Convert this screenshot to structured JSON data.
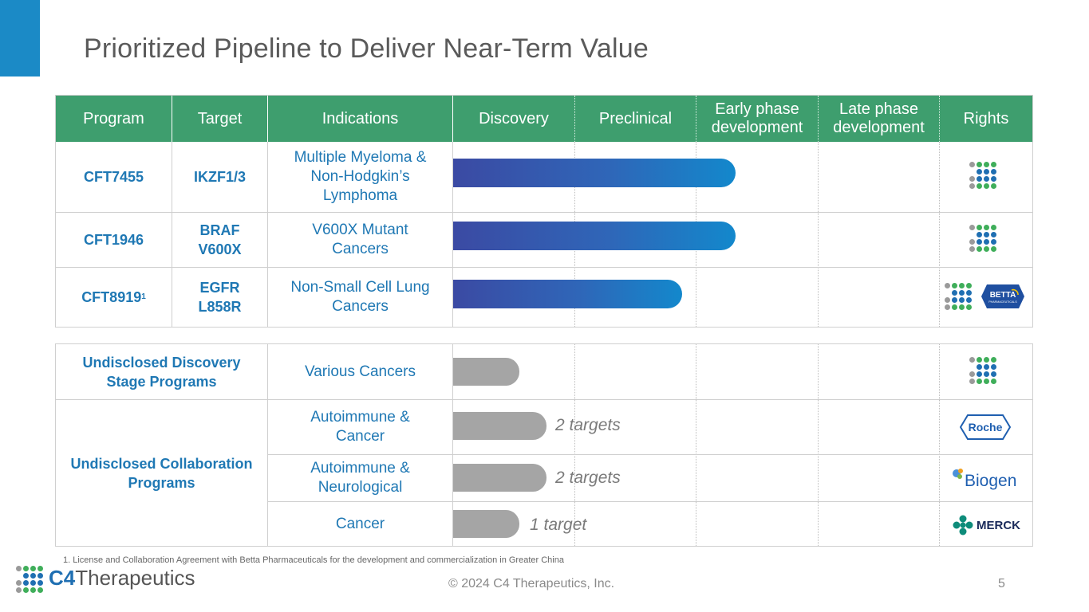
{
  "title": "Prioritized Pipeline to Deliver Near-Term Value",
  "headers": {
    "program": "Program",
    "target": "Target",
    "indications": "Indications",
    "discovery": "Discovery",
    "preclinical": "Preclinical",
    "early": "Early phase development",
    "late": "Late phase development",
    "rights": "Rights"
  },
  "programs": [
    {
      "name": "CFT7455",
      "target": "IKZF1/3",
      "indication": "Multiple Myeloma & Non-Hodgkin’s Lymphoma",
      "stage_progress": 0.58,
      "rights": [
        "C4 Therapeutics"
      ]
    },
    {
      "name": "CFT1946",
      "target": "BRAF V600X",
      "indication": "V600X Mutant Cancers",
      "stage_progress": 0.58,
      "rights": [
        "C4 Therapeutics"
      ]
    },
    {
      "name": "CFT8919",
      "footnote_mark": "1",
      "target": "EGFR L858R",
      "indication": "Non-Small Cell Lung Cancers",
      "stage_progress": 0.47,
      "rights": [
        "C4 Therapeutics",
        "Betta Pharmaceuticals"
      ]
    }
  ],
  "undisclosed": {
    "discovery_label": "Undisclosed Discovery Stage Programs",
    "collab_label": "Undisclosed Collaboration Programs",
    "rows": [
      {
        "indication": "Various Cancers",
        "stage_progress": 0.12,
        "note": "",
        "partner": "C4 Therapeutics"
      },
      {
        "indication": "Autoimmune & Cancer",
        "stage_progress": 0.17,
        "note": "2 targets",
        "partner": "Roche"
      },
      {
        "indication": "Autoimmune & Neurological",
        "stage_progress": 0.17,
        "note": "2 targets",
        "partner": "Biogen"
      },
      {
        "indication": "Cancer",
        "stage_progress": 0.12,
        "note": "1 target",
        "partner": "MERCK"
      }
    ]
  },
  "logos": {
    "betta": "BETTA",
    "betta_sub": "PHARMACEUTICALS",
    "roche": "Roche",
    "biogen": "Biogen",
    "merck": "MERCK"
  },
  "footnote": "1. License and Collaboration Agreement with Betta Pharmaceuticals for the development and commercialization in Greater China",
  "copyright": "© 2024 C4 Therapeutics, Inc.",
  "page_number": "5",
  "brand": {
    "c4": "C4",
    "name": "Therapeutics"
  },
  "colors": {
    "header_green": "#3e9e6e",
    "accent_blue": "#1b8ac6",
    "program_blue": "#1f78b4",
    "bar_gray": "#a5a5a5"
  }
}
